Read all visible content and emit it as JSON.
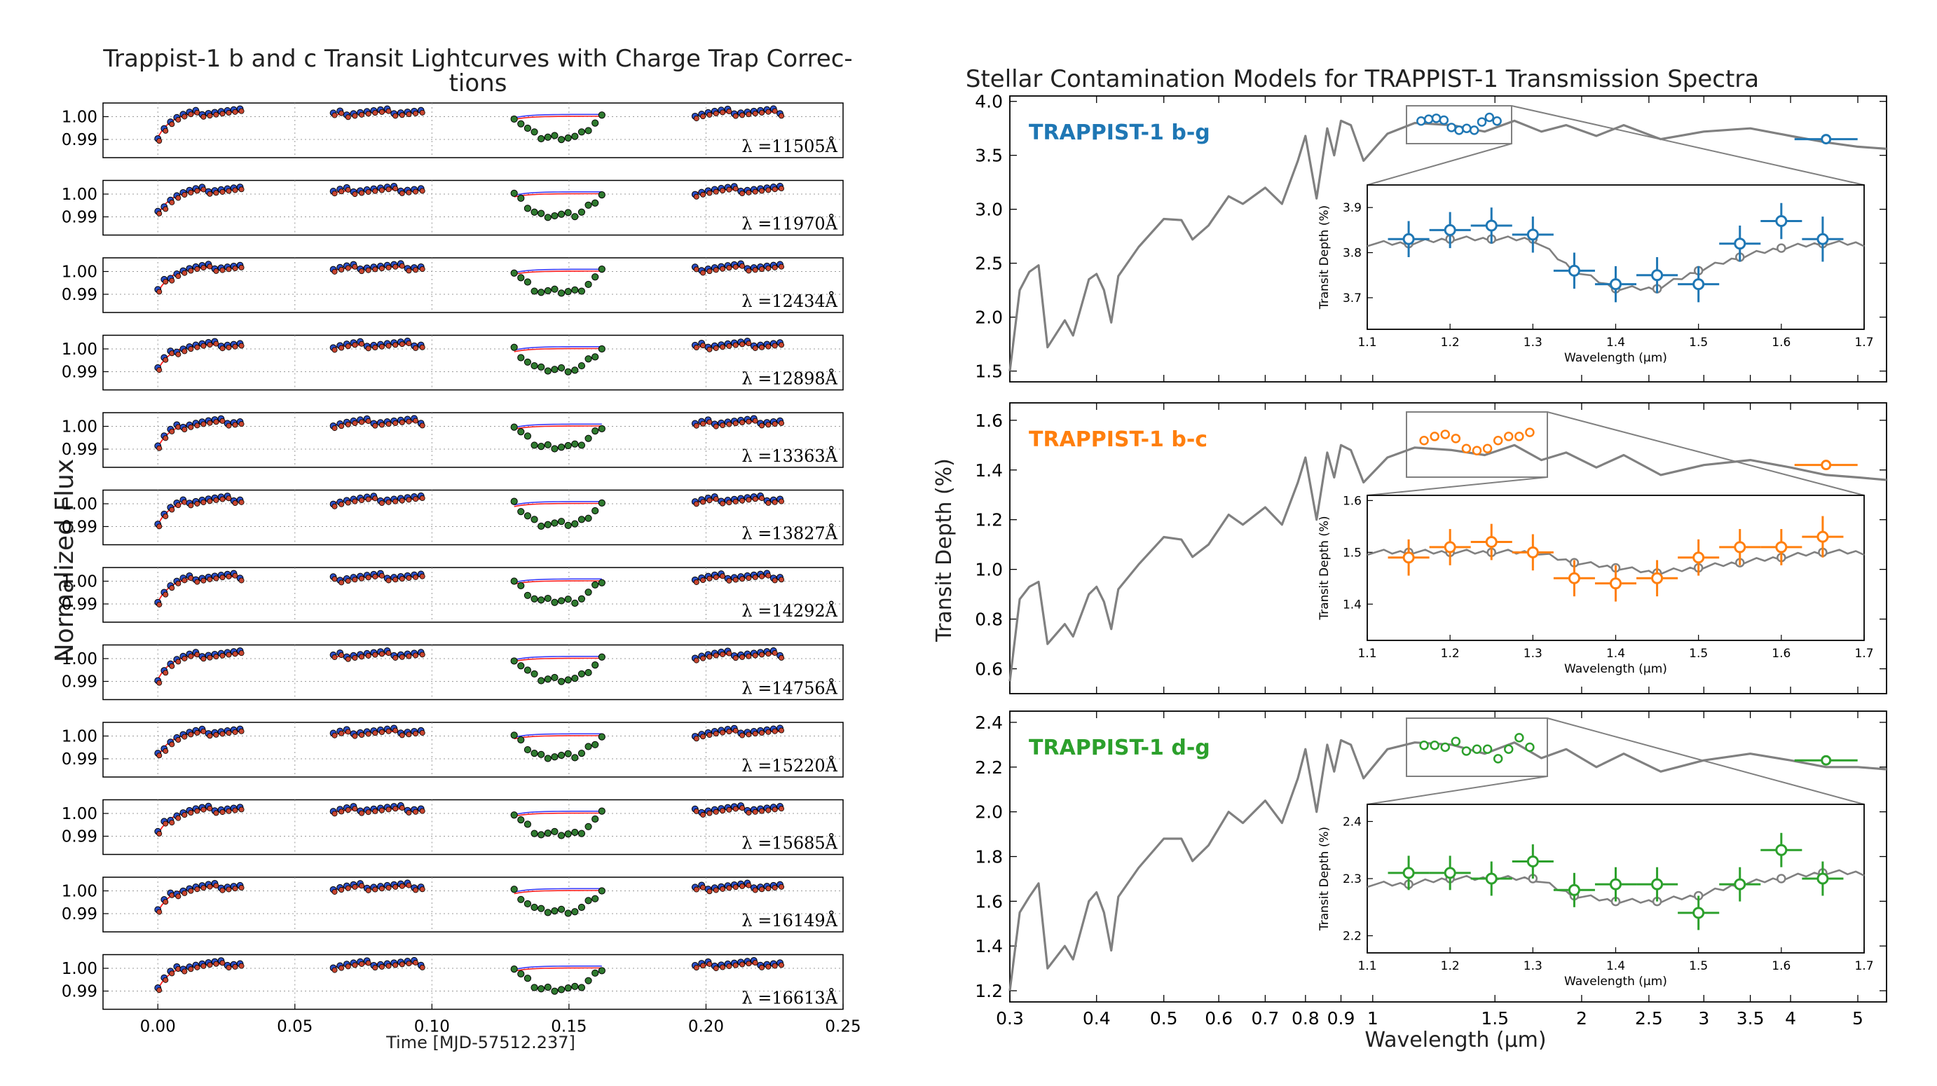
{
  "chart_data": [
    {
      "type": "scatter",
      "title": "Trappist-1 b and c Transit Lightcurves with Charge Trap Correc-",
      "title_line2": "tions",
      "xlabel": "Time [MJD-57512.237]",
      "ylabel": "Normalized Flux",
      "xlim": [
        -0.02,
        0.25
      ],
      "ylim": [
        0.982,
        1.006
      ],
      "xticks": [
        "0.00",
        "0.05",
        "0.10",
        "0.15",
        "0.20",
        "0.25"
      ],
      "yticks": [
        "0.99",
        "1.00"
      ],
      "grid": true,
      "colors": {
        "data": "#2b4fc7",
        "corrected": "#c8452f",
        "transit_points": "#2f7a2f",
        "model_blue": "#3c3cff",
        "model_red": "#ff2020"
      },
      "panels": [
        {
          "label": "λ =11505Å",
          "depth": 0.009
        },
        {
          "label": "λ =11970Å",
          "depth": 0.0092
        },
        {
          "label": "λ =12434Å",
          "depth": 0.0088
        },
        {
          "label": "λ =12898Å",
          "depth": 0.009
        },
        {
          "label": "λ =13363Å",
          "depth": 0.0088
        },
        {
          "label": "λ =13827Å",
          "depth": 0.0088
        },
        {
          "label": "λ =14292Å",
          "depth": 0.0086
        },
        {
          "label": "λ =14756Å",
          "depth": 0.009
        },
        {
          "label": "λ =15220Å",
          "depth": 0.0088
        },
        {
          "label": "λ =15685Å",
          "depth": 0.009
        },
        {
          "label": "λ =16149Å",
          "depth": 0.0088
        },
        {
          "label": "λ =16613Å",
          "depth": 0.009
        }
      ],
      "orbits": [
        {
          "t_start": 0.0,
          "t_end": 0.03
        },
        {
          "t_start": 0.064,
          "t_end": 0.096
        },
        {
          "t_start": 0.13,
          "t_end": 0.162
        },
        {
          "t_start": 0.196,
          "t_end": 0.227
        }
      ]
    },
    {
      "type": "line",
      "title": "Stellar Contamination Models for TRAPPIST-1 Transmission Spectra",
      "xlabel": "Wavelength (μm)",
      "ylabel": "Transit Depth (%)",
      "xscale": "log",
      "xlim": [
        0.3,
        5.5
      ],
      "xticks": [
        "0.3",
        "0.4",
        "0.5",
        "0.6",
        "0.7",
        "0.8",
        "0.9",
        "1",
        "1.5",
        "2",
        "2.5",
        "3",
        "3.5",
        "4",
        "5"
      ],
      "inset": {
        "xlabel": "Wavelength (μm)",
        "ylabel": "Transit Depth (%)",
        "xlim": [
          1.1,
          1.7
        ],
        "xticks": [
          "1.1",
          "1.2",
          "1.3",
          "1.4",
          "1.5",
          "1.6",
          "1.7"
        ],
        "x": [
          1.15,
          1.2,
          1.25,
          1.3,
          1.35,
          1.4,
          1.45,
          1.5,
          1.55,
          1.6,
          1.65
        ]
      },
      "panels": [
        {
          "name": "TRAPPIST-1 b-g",
          "color": "#1f77b4",
          "ylim": [
            1.4,
            4.05
          ],
          "yticks": [
            "1.5",
            "2.0",
            "2.5",
            "3.0",
            "3.5",
            "4.0"
          ],
          "inset_ylim": [
            3.63,
            3.95
          ],
          "inset_yticks": [
            "3.7",
            "3.8",
            "3.9"
          ],
          "inset_data": [
            3.83,
            3.85,
            3.86,
            3.84,
            3.76,
            3.73,
            3.75,
            3.73,
            3.82,
            3.87,
            3.83
          ],
          "inset_model": [
            3.82,
            3.83,
            3.83,
            3.83,
            3.76,
            3.72,
            3.72,
            3.76,
            3.79,
            3.81,
            3.82
          ],
          "inset_yerr": [
            0.04,
            0.04,
            0.04,
            0.04,
            0.04,
            0.04,
            0.04,
            0.04,
            0.04,
            0.04,
            0.05
          ],
          "model": [
            [
              0.3,
              1.5
            ],
            [
              0.31,
              2.25
            ],
            [
              0.32,
              2.42
            ],
            [
              0.33,
              2.48
            ],
            [
              0.34,
              1.72
            ],
            [
              0.36,
              1.97
            ],
            [
              0.37,
              1.83
            ],
            [
              0.39,
              2.35
            ],
            [
              0.4,
              2.4
            ],
            [
              0.41,
              2.25
            ],
            [
              0.42,
              1.95
            ],
            [
              0.43,
              2.38
            ],
            [
              0.46,
              2.65
            ],
            [
              0.5,
              2.91
            ],
            [
              0.53,
              2.9
            ],
            [
              0.55,
              2.72
            ],
            [
              0.58,
              2.85
            ],
            [
              0.62,
              3.12
            ],
            [
              0.65,
              3.05
            ],
            [
              0.7,
              3.2
            ],
            [
              0.74,
              3.05
            ],
            [
              0.78,
              3.45
            ],
            [
              0.8,
              3.68
            ],
            [
              0.83,
              3.1
            ],
            [
              0.86,
              3.75
            ],
            [
              0.88,
              3.5
            ],
            [
              0.9,
              3.82
            ],
            [
              0.93,
              3.78
            ],
            [
              0.97,
              3.45
            ],
            [
              1.05,
              3.7
            ],
            [
              1.15,
              3.8
            ],
            [
              1.3,
              3.78
            ],
            [
              1.45,
              3.72
            ],
            [
              1.6,
              3.82
            ],
            [
              1.75,
              3.72
            ],
            [
              1.9,
              3.78
            ],
            [
              2.1,
              3.68
            ],
            [
              2.3,
              3.78
            ],
            [
              2.6,
              3.65
            ],
            [
              3.0,
              3.72
            ],
            [
              3.5,
              3.75
            ],
            [
              4.0,
              3.68
            ],
            [
              4.5,
              3.62
            ],
            [
              5.0,
              3.58
            ],
            [
              5.5,
              3.56
            ]
          ],
          "spitzer_point": {
            "x": 4.5,
            "y": 3.65
          }
        },
        {
          "name": "TRAPPIST-1 b-c",
          "color": "#ff7f0e",
          "ylim": [
            0.5,
            1.67
          ],
          "yticks": [
            "0.6",
            "0.8",
            "1.0",
            "1.2",
            "1.4",
            "1.6"
          ],
          "inset_ylim": [
            1.33,
            1.61
          ],
          "inset_yticks": [
            "1.4",
            "1.5",
            "1.6"
          ],
          "inset_data": [
            1.49,
            1.51,
            1.52,
            1.5,
            1.45,
            1.44,
            1.45,
            1.49,
            1.51,
            1.51,
            1.53
          ],
          "inset_model": [
            1.5,
            1.5,
            1.5,
            1.5,
            1.48,
            1.47,
            1.46,
            1.47,
            1.48,
            1.49,
            1.5
          ],
          "inset_yerr": [
            0.035,
            0.035,
            0.035,
            0.035,
            0.035,
            0.035,
            0.035,
            0.035,
            0.035,
            0.035,
            0.04
          ],
          "model": [
            [
              0.3,
              0.55
            ],
            [
              0.31,
              0.88
            ],
            [
              0.32,
              0.93
            ],
            [
              0.33,
              0.95
            ],
            [
              0.34,
              0.7
            ],
            [
              0.36,
              0.78
            ],
            [
              0.37,
              0.73
            ],
            [
              0.39,
              0.9
            ],
            [
              0.4,
              0.93
            ],
            [
              0.41,
              0.87
            ],
            [
              0.42,
              0.76
            ],
            [
              0.43,
              0.92
            ],
            [
              0.46,
              1.02
            ],
            [
              0.5,
              1.13
            ],
            [
              0.53,
              1.12
            ],
            [
              0.55,
              1.05
            ],
            [
              0.58,
              1.1
            ],
            [
              0.62,
              1.22
            ],
            [
              0.65,
              1.18
            ],
            [
              0.7,
              1.25
            ],
            [
              0.74,
              1.18
            ],
            [
              0.78,
              1.35
            ],
            [
              0.8,
              1.45
            ],
            [
              0.83,
              1.2
            ],
            [
              0.86,
              1.47
            ],
            [
              0.88,
              1.37
            ],
            [
              0.9,
              1.5
            ],
            [
              0.93,
              1.48
            ],
            [
              0.97,
              1.35
            ],
            [
              1.05,
              1.45
            ],
            [
              1.15,
              1.49
            ],
            [
              1.3,
              1.48
            ],
            [
              1.45,
              1.46
            ],
            [
              1.6,
              1.5
            ],
            [
              1.75,
              1.44
            ],
            [
              1.9,
              1.47
            ],
            [
              2.1,
              1.41
            ],
            [
              2.3,
              1.46
            ],
            [
              2.6,
              1.38
            ],
            [
              3.0,
              1.42
            ],
            [
              3.5,
              1.44
            ],
            [
              4.0,
              1.41
            ],
            [
              4.5,
              1.38
            ],
            [
              5.0,
              1.37
            ],
            [
              5.5,
              1.36
            ]
          ],
          "spitzer_point": {
            "x": 4.5,
            "y": 1.42
          }
        },
        {
          "name": "TRAPPIST-1 d-g",
          "color": "#2ca02c",
          "ylim": [
            1.15,
            2.45
          ],
          "yticks": [
            "1.2",
            "1.4",
            "1.6",
            "1.8",
            "2.0",
            "2.2",
            "2.4"
          ],
          "inset_ylim": [
            2.17,
            2.43
          ],
          "inset_yticks": [
            "2.2",
            "2.3",
            "2.4"
          ],
          "inset_data": [
            2.31,
            2.31,
            2.3,
            2.33,
            2.28,
            2.29,
            2.29,
            2.24,
            2.29,
            2.35,
            2.3
          ],
          "inset_model": [
            2.29,
            2.3,
            2.3,
            2.3,
            2.27,
            2.26,
            2.26,
            2.27,
            2.29,
            2.3,
            2.31
          ],
          "inset_yerr": [
            0.03,
            0.03,
            0.03,
            0.03,
            0.03,
            0.03,
            0.03,
            0.03,
            0.03,
            0.03,
            0.03
          ],
          "model": [
            [
              0.3,
              1.2
            ],
            [
              0.31,
              1.55
            ],
            [
              0.32,
              1.62
            ],
            [
              0.33,
              1.68
            ],
            [
              0.34,
              1.3
            ],
            [
              0.36,
              1.4
            ],
            [
              0.37,
              1.34
            ],
            [
              0.39,
              1.6
            ],
            [
              0.4,
              1.64
            ],
            [
              0.41,
              1.55
            ],
            [
              0.42,
              1.38
            ],
            [
              0.43,
              1.62
            ],
            [
              0.46,
              1.75
            ],
            [
              0.5,
              1.88
            ],
            [
              0.53,
              1.88
            ],
            [
              0.55,
              1.78
            ],
            [
              0.58,
              1.85
            ],
            [
              0.62,
              2.0
            ],
            [
              0.65,
              1.95
            ],
            [
              0.7,
              2.05
            ],
            [
              0.74,
              1.95
            ],
            [
              0.78,
              2.15
            ],
            [
              0.8,
              2.28
            ],
            [
              0.83,
              2.0
            ],
            [
              0.86,
              2.3
            ],
            [
              0.88,
              2.18
            ],
            [
              0.9,
              2.32
            ],
            [
              0.93,
              2.3
            ],
            [
              0.97,
              2.15
            ],
            [
              1.05,
              2.28
            ],
            [
              1.15,
              2.31
            ],
            [
              1.3,
              2.3
            ],
            [
              1.45,
              2.26
            ],
            [
              1.6,
              2.31
            ],
            [
              1.75,
              2.24
            ],
            [
              1.9,
              2.28
            ],
            [
              2.1,
              2.2
            ],
            [
              2.3,
              2.26
            ],
            [
              2.6,
              2.18
            ],
            [
              3.0,
              2.23
            ],
            [
              3.5,
              2.26
            ],
            [
              4.0,
              2.23
            ],
            [
              4.5,
              2.2
            ],
            [
              5.0,
              2.2
            ],
            [
              5.5,
              2.19
            ]
          ],
          "spitzer_point": {
            "x": 4.5,
            "y": 2.23
          }
        }
      ]
    }
  ]
}
